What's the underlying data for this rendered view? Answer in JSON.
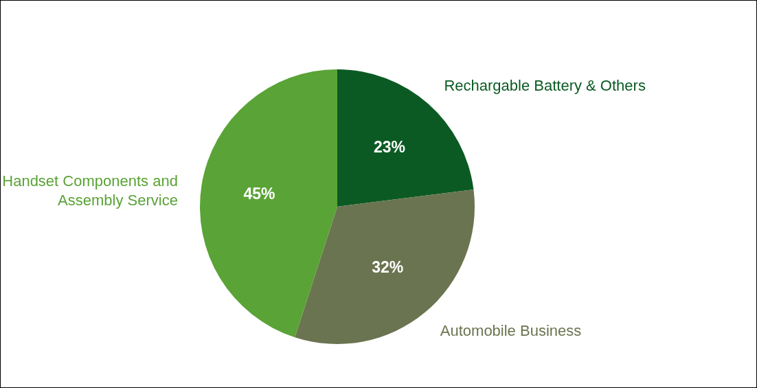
{
  "chart_data": {
    "type": "pie",
    "categories": [
      "Rechargable Battery & Others",
      "Automobile Business",
      "Handset Components and Assembly Service"
    ],
    "values": [
      23,
      32,
      45
    ],
    "colors": [
      "#0b5a24",
      "#6b7450",
      "#5aa336"
    ],
    "value_labels": [
      "23%",
      "32%",
      "45%"
    ]
  }
}
